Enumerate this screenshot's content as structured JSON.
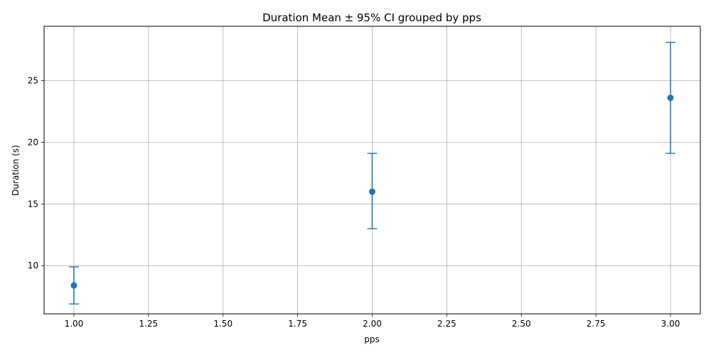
{
  "chart_data": {
    "type": "scatter",
    "title": "Duration Mean ± 95% CI grouped by pps",
    "xlabel": "pps",
    "ylabel": "Duration (s)",
    "xlim": [
      0.9,
      3.1
    ],
    "ylim": [
      6.1,
      29.4
    ],
    "x_ticks": [
      "1.00",
      "1.25",
      "1.50",
      "1.75",
      "2.00",
      "2.25",
      "2.50",
      "2.75",
      "3.00"
    ],
    "y_ticks": [
      "10",
      "15",
      "20",
      "25"
    ],
    "grid": true,
    "color": "#1f77b4",
    "points": [
      {
        "x": 1,
        "mean": 8.4,
        "ci_low": 6.9,
        "ci_high": 9.9
      },
      {
        "x": 2,
        "mean": 16.0,
        "ci_low": 13.0,
        "ci_high": 19.1
      },
      {
        "x": 3,
        "mean": 23.6,
        "ci_low": 19.1,
        "ci_high": 28.1
      }
    ]
  }
}
